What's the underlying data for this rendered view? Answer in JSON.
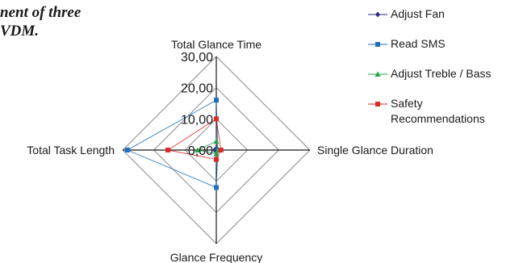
{
  "caption": {
    "line1": "nent of three",
    "line2": "VDM."
  },
  "chart_data": {
    "type": "radar",
    "axes": [
      "Total Glance Time",
      "Single Glance Duration",
      "Glance Frequency",
      "Total Task Length"
    ],
    "tick_labels": [
      "0,00",
      "10,00",
      "20,00",
      "30,00"
    ],
    "rmax": 30,
    "rings": 3,
    "series": [
      {
        "name": "Adjust Fan",
        "color": "#2b2b7a",
        "marker": "diamond",
        "values": [
          0.5,
          0.5,
          0.5,
          0.5
        ]
      },
      {
        "name": "Read SMS",
        "color": "#1f6fbf",
        "marker": "square",
        "values": [
          16,
          0.5,
          12,
          28.5
        ]
      },
      {
        "name": "Adjust Treble / Bass",
        "color": "#22a64a",
        "marker": "triangle",
        "values": [
          2.8,
          0.5,
          1.2,
          6
        ]
      },
      {
        "name": "Safety\nRecommendations",
        "color": "#e02626",
        "marker": "square",
        "values": [
          10,
          1.5,
          3,
          15.5
        ]
      }
    ]
  }
}
